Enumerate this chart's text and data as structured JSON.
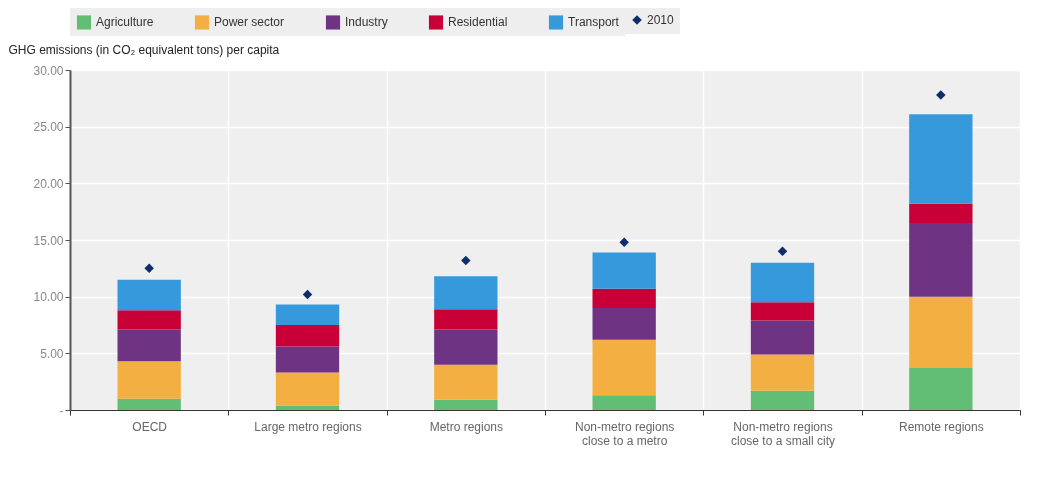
{
  "chart_data": {
    "type": "bar",
    "stacked": true,
    "ylabel": "GHG emissions (in CO₂ equivalent tons) per capita",
    "categories": [
      "OECD",
      "Large metro regions",
      "Metro regions",
      "Non-metro regions close to a metro",
      "Non-metro regions close to a small city",
      "Remote regions"
    ],
    "series": [
      {
        "name": "Agriculture",
        "color": "#62bd75",
        "values": [
          1.0,
          0.4,
          0.9,
          1.3,
          1.7,
          3.7
        ]
      },
      {
        "name": "Power sector",
        "color": "#f4af42",
        "values": [
          3.3,
          2.9,
          3.1,
          4.9,
          3.2,
          6.3
        ]
      },
      {
        "name": "Industry",
        "color": "#6e3483",
        "values": [
          2.8,
          2.3,
          3.1,
          2.8,
          3.0,
          6.5
        ]
      },
      {
        "name": "Residential",
        "color": "#c80037",
        "values": [
          1.7,
          1.9,
          1.8,
          1.7,
          1.6,
          1.7
        ]
      },
      {
        "name": "Transport",
        "color": "#3699db",
        "values": [
          2.7,
          1.8,
          2.9,
          3.2,
          3.5,
          7.9
        ]
      },
      {
        "name": "2010",
        "type": "scatter",
        "marker": "diamond",
        "color": "#0d2e6b",
        "x": [
          "OECD",
          "Large metro regions",
          "Metro regions",
          "Non-metro regions close to a metro",
          "Non-metro regions close to a small city",
          "Remote regions"
        ],
        "values": [
          12.5,
          10.2,
          13.2,
          14.8,
          14.0,
          27.8
        ]
      }
    ],
    "ylim": [
      0,
      30
    ],
    "yticks": [
      {
        "value": 0,
        "label": "-"
      },
      {
        "value": 5,
        "label": "5.00"
      },
      {
        "value": 10,
        "label": "10.00"
      },
      {
        "value": 15,
        "label": "15.00"
      },
      {
        "value": 20,
        "label": "20.00"
      },
      {
        "value": 25,
        "label": "25.00"
      },
      {
        "value": 30,
        "label": "30.00"
      }
    ],
    "grid": true,
    "legend": "top"
  }
}
